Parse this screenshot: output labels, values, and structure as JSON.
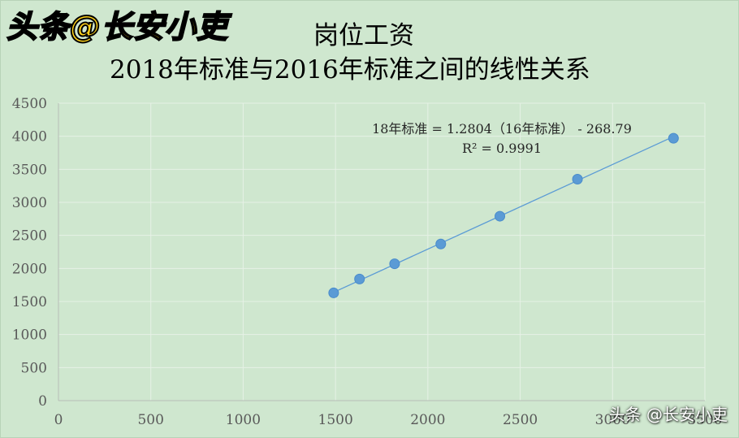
{
  "watermark_brand": "头条@长安小吏",
  "watermark_corner": "头条 @长安小吏",
  "chart_data": {
    "type": "scatter",
    "title_line1": "岗位工资",
    "title_line2": "2018年标准与2016年标准之间的线性关系",
    "xlabel": "",
    "ylabel": "",
    "xlim": [
      0,
      3500
    ],
    "ylim": [
      0,
      4500
    ],
    "x_ticks": [
      0,
      500,
      1000,
      1500,
      2000,
      2500,
      3000,
      3500
    ],
    "y_ticks": [
      0,
      500,
      1000,
      1500,
      2000,
      2500,
      3000,
      3500,
      4000,
      4500
    ],
    "grid": true,
    "point_color": "#5b9bd5",
    "trendline_color": "#5b9bd5",
    "points": [
      {
        "x": 1490,
        "y": 1630
      },
      {
        "x": 1630,
        "y": 1840
      },
      {
        "x": 1820,
        "y": 2070
      },
      {
        "x": 2070,
        "y": 2370
      },
      {
        "x": 2390,
        "y": 2790
      },
      {
        "x": 2810,
        "y": 3350
      },
      {
        "x": 3330,
        "y": 3970
      }
    ],
    "trendline": {
      "slope": 1.2804,
      "intercept": -268.79
    },
    "equation_text": "18年标准 = 1.2804（16年标准） - 268.79",
    "r2_text": "R² = 0.9991"
  }
}
